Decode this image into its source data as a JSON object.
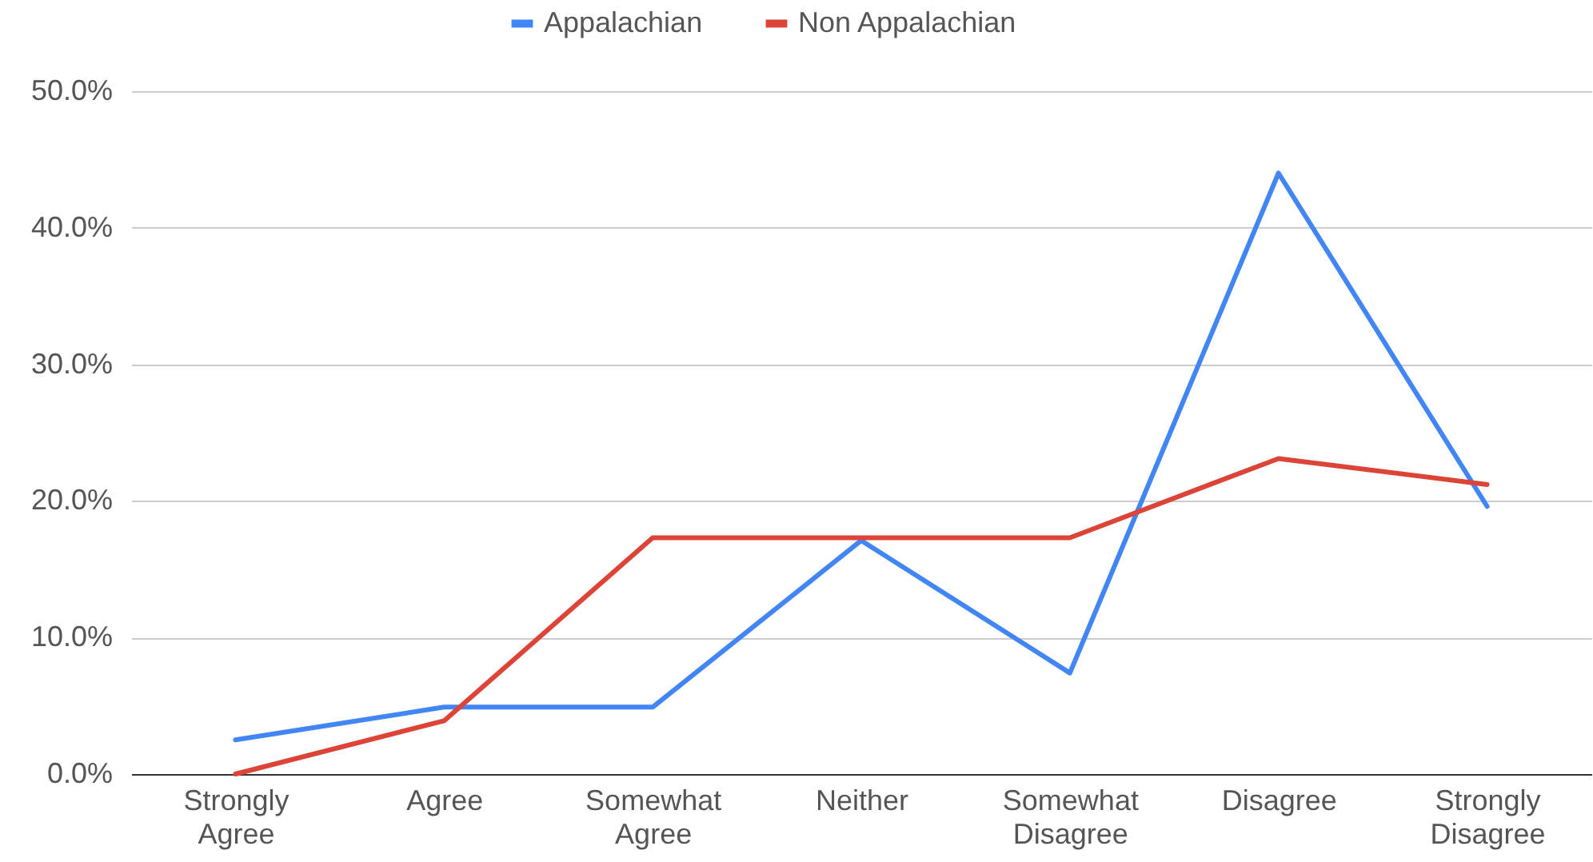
{
  "chart_data": {
    "type": "line",
    "categories": [
      "Strongly Agree",
      "Agree",
      "Somewhat Agree",
      "Neither",
      "Somewhat Disagree",
      "Disagree",
      "Strongly Disagree"
    ],
    "series": [
      {
        "name": "Appalachian",
        "color": "#4285f4",
        "values": [
          2.5,
          4.9,
          4.9,
          17.1,
          7.4,
          44.0,
          19.6
        ]
      },
      {
        "name": "Non Appalachian",
        "color": "#db4437",
        "values": [
          0,
          3.9,
          17.3,
          17.3,
          17.3,
          23.1,
          21.2
        ]
      }
    ],
    "ylim": [
      0,
      50
    ],
    "yticks": [
      {
        "value": 0,
        "label": "0.0%"
      },
      {
        "value": 10,
        "label": "10.0%"
      },
      {
        "value": 20,
        "label": "20.0%"
      },
      {
        "value": 30,
        "label": "30.0%"
      },
      {
        "value": 40,
        "label": "40.0%"
      },
      {
        "value": 50,
        "label": "50.0%"
      }
    ],
    "grid": "y",
    "legend": "top",
    "marker": "none",
    "line_style": "solid"
  }
}
